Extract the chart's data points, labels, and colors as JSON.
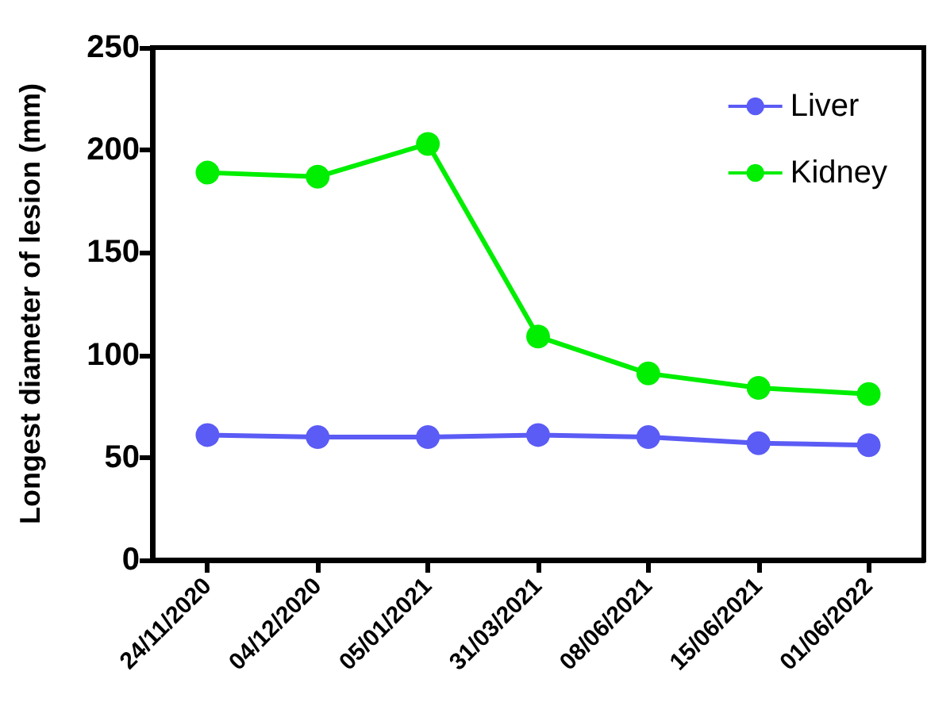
{
  "chart_data": {
    "type": "line",
    "ylabel": "Longest diameter of lesion (mm)",
    "categories": [
      "24/11/2020",
      "04/12/2020",
      "05/01/2021",
      "31/03/2021",
      "08/06/2021",
      "15/06/2021",
      "01/06/2022"
    ],
    "series": [
      {
        "name": "Liver",
        "color": "#5b5bf5",
        "values": [
          61,
          60,
          60,
          61,
          60,
          57,
          56
        ]
      },
      {
        "name": "Kidney",
        "color": "#00ee00",
        "values": [
          189,
          187,
          203,
          109,
          91,
          84,
          81
        ]
      }
    ],
    "ylim": [
      0,
      250
    ],
    "yticks": [
      0,
      50,
      100,
      150,
      200,
      250
    ],
    "grid": false,
    "legend": "top right",
    "marker": "circle",
    "line_style": "solid"
  }
}
